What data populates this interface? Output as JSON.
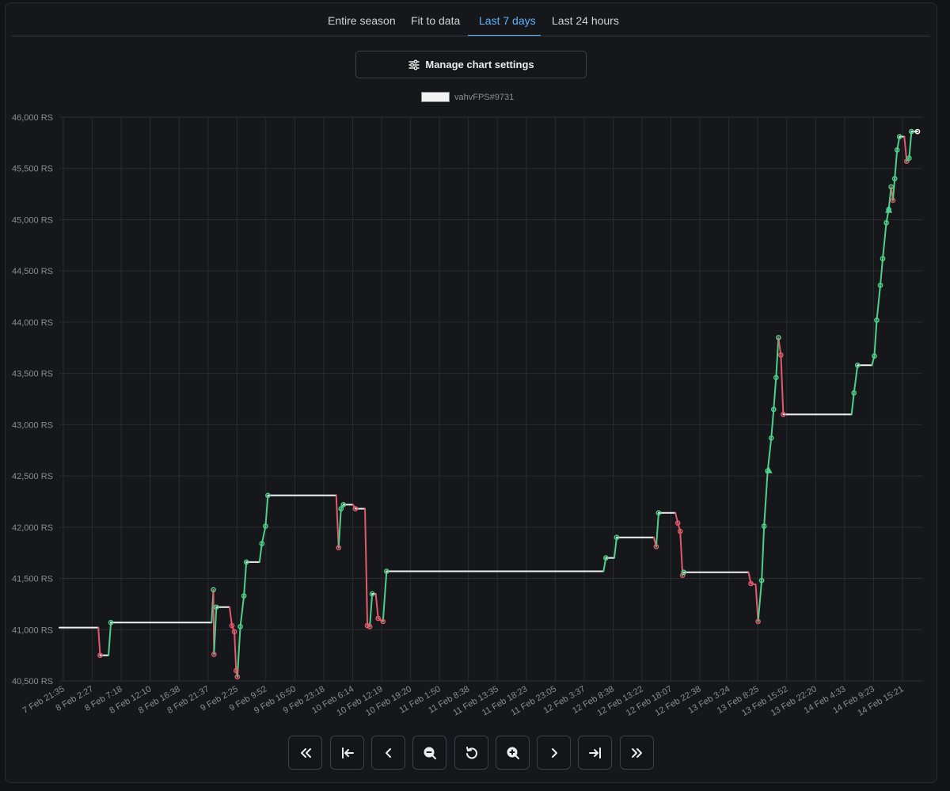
{
  "tabs": [
    {
      "label": "Entire season",
      "active": false
    },
    {
      "label": "Fit to data",
      "active": false
    },
    {
      "label": "Last 7 days",
      "active": true
    },
    {
      "label": "Last 24 hours",
      "active": false
    }
  ],
  "settings_button": {
    "label": "Manage chart settings",
    "icon": "sliders-icon"
  },
  "legend": {
    "label": "vahvFPS#9731",
    "color": "#f2f2f2"
  },
  "colors": {
    "up": "#4fd08a",
    "down": "#e05b6b",
    "flat": "#f2f2f2",
    "grid": "#2a2c31",
    "accent": "#5fb4ff"
  },
  "controls": [
    {
      "name": "pan-far-left-button",
      "icon": "double-chevron-left-icon"
    },
    {
      "name": "jump-to-start-button",
      "icon": "arrow-to-start-icon"
    },
    {
      "name": "pan-left-button",
      "icon": "chevron-left-icon"
    },
    {
      "name": "zoom-out-button",
      "icon": "zoom-out-icon"
    },
    {
      "name": "reset-zoom-button",
      "icon": "reset-icon"
    },
    {
      "name": "zoom-in-button",
      "icon": "zoom-in-icon"
    },
    {
      "name": "pan-right-button",
      "icon": "chevron-right-icon"
    },
    {
      "name": "jump-to-end-button",
      "icon": "arrow-to-end-icon"
    },
    {
      "name": "pan-far-right-button",
      "icon": "double-chevron-right-icon"
    }
  ],
  "chart_data": {
    "type": "line",
    "series": [
      {
        "name": "vahvFPS#9731"
      }
    ],
    "ylim": [
      40500,
      46000
    ],
    "y_ticks": [
      40500,
      41000,
      41500,
      42000,
      42500,
      43000,
      43500,
      44000,
      44500,
      45000,
      45500,
      46000
    ],
    "y_tick_labels": [
      "40,500 RS",
      "41,000 RS",
      "41,500 RS",
      "42,000 RS",
      "42,500 RS",
      "43,000 RS",
      "43,500 RS",
      "44,000 RS",
      "44,500 RS",
      "45,000 RS",
      "45,500 RS",
      "46,000 RS"
    ],
    "x_tick_labels": [
      "7 Feb 21:35",
      "8 Feb 2:27",
      "8 Feb 7:18",
      "8 Feb 12:10",
      "8 Feb 16:38",
      "8 Feb 21:37",
      "9 Feb 2:25",
      "9 Feb 9:52",
      "9 Feb 16:50",
      "9 Feb 23:18",
      "10 Feb 6:14",
      "10 Feb 12:19",
      "10 Feb 19:20",
      "11 Feb 1:50",
      "11 Feb 8:38",
      "11 Feb 13:35",
      "11 Feb 18:23",
      "11 Feb 23:05",
      "12 Feb 3:37",
      "12 Feb 8:38",
      "12 Feb 13:22",
      "12 Feb 18:07",
      "12 Feb 22:38",
      "13 Feb 3:24",
      "13 Feb 8:25",
      "13 Feb 15:52",
      "13 Feb 22:20",
      "14 Feb 4:33",
      "14 Feb 9:23",
      "14 Feb 15:21"
    ],
    "grid": true,
    "legend": "top-center",
    "points": [
      [
        0.0,
        41020,
        "n"
      ],
      [
        3.25,
        41020,
        "n"
      ],
      [
        3.4,
        40750,
        "d"
      ],
      [
        4.1,
        40750,
        "n"
      ],
      [
        4.3,
        41070,
        "u"
      ],
      [
        12.7,
        41070,
        "n"
      ],
      [
        12.85,
        41390,
        "u"
      ],
      [
        12.9,
        40760,
        "d"
      ],
      [
        13.1,
        41220,
        "u"
      ],
      [
        14.2,
        41220,
        "n"
      ],
      [
        14.4,
        41040,
        "d"
      ],
      [
        14.6,
        40980,
        "d"
      ],
      [
        14.75,
        40600,
        "d"
      ],
      [
        14.85,
        40540,
        "d"
      ],
      [
        15.1,
        41030,
        "u"
      ],
      [
        15.4,
        41330,
        "u"
      ],
      [
        15.6,
        41660,
        "u"
      ],
      [
        16.7,
        41660,
        "n"
      ],
      [
        16.9,
        41840,
        "u"
      ],
      [
        17.2,
        42010,
        "u"
      ],
      [
        17.4,
        42310,
        "u"
      ],
      [
        23.1,
        42310,
        "n"
      ],
      [
        23.3,
        41800,
        "d"
      ],
      [
        23.5,
        42180,
        "u"
      ],
      [
        23.7,
        42220,
        "u"
      ],
      [
        24.5,
        42220,
        "n"
      ],
      [
        24.7,
        42180,
        "d"
      ],
      [
        25.5,
        42180,
        "n"
      ],
      [
        25.7,
        41040,
        "d"
      ],
      [
        25.9,
        41030,
        "d"
      ],
      [
        26.1,
        41350,
        "u"
      ],
      [
        26.4,
        41350,
        "n"
      ],
      [
        26.6,
        41110,
        "d"
      ],
      [
        27.0,
        41080,
        "d"
      ],
      [
        27.3,
        41570,
        "u"
      ],
      [
        45.4,
        41570,
        "n"
      ],
      [
        45.6,
        41700,
        "u"
      ],
      [
        46.3,
        41700,
        "n"
      ],
      [
        46.5,
        41900,
        "u"
      ],
      [
        49.6,
        41900,
        "n"
      ],
      [
        49.8,
        41810,
        "d"
      ],
      [
        50.0,
        42140,
        "u"
      ],
      [
        51.4,
        42140,
        "n"
      ],
      [
        51.6,
        42040,
        "d"
      ],
      [
        51.8,
        41960,
        "d"
      ],
      [
        52.0,
        41530,
        "d"
      ],
      [
        52.1,
        41560,
        "u"
      ],
      [
        57.5,
        41560,
        "n"
      ],
      [
        57.7,
        41450,
        "d"
      ],
      [
        58.1,
        41440,
        "n"
      ],
      [
        58.3,
        41080,
        "d"
      ],
      [
        58.6,
        41480,
        "u"
      ],
      [
        58.8,
        42010,
        "u"
      ],
      [
        59.1,
        42550,
        "u"
      ],
      [
        59.4,
        42870,
        "u"
      ],
      [
        59.6,
        43150,
        "u"
      ],
      [
        59.8,
        43460,
        "u"
      ],
      [
        60.0,
        43850,
        "u"
      ],
      [
        60.2,
        43680,
        "d"
      ],
      [
        60.4,
        43100,
        "d"
      ],
      [
        66.1,
        43100,
        "n"
      ],
      [
        66.3,
        43310,
        "u"
      ],
      [
        66.6,
        43580,
        "u"
      ],
      [
        67.8,
        43580,
        "n"
      ],
      [
        68.0,
        43670,
        "u"
      ],
      [
        68.2,
        44020,
        "u"
      ],
      [
        68.5,
        44360,
        "u"
      ],
      [
        68.7,
        44620,
        "u"
      ],
      [
        69.0,
        44970,
        "u"
      ],
      [
        69.2,
        45100,
        "u"
      ],
      [
        69.4,
        45320,
        "u"
      ],
      [
        69.55,
        45190,
        "d"
      ],
      [
        69.7,
        45400,
        "u"
      ],
      [
        69.9,
        45680,
        "u"
      ],
      [
        70.1,
        45810,
        "u"
      ],
      [
        70.5,
        45810,
        "n"
      ],
      [
        70.7,
        45570,
        "d"
      ],
      [
        70.9,
        45600,
        "u"
      ],
      [
        71.1,
        45860,
        "u"
      ],
      [
        71.6,
        45860,
        "n"
      ]
    ],
    "markers": [
      [
        59.2,
        42550,
        "triangle"
      ],
      [
        69.2,
        45090,
        "triangle"
      ]
    ]
  }
}
